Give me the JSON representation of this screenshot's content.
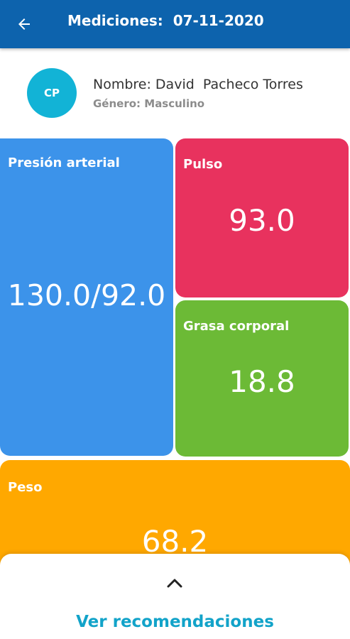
{
  "header": {
    "title": "Mediciones:  07-11-2020",
    "back_icon": "arrow-left-icon"
  },
  "patient": {
    "initials": "CP",
    "name": "Nombre: David  Pacheco Torres",
    "gender": "Género: Masculino"
  },
  "measurements": {
    "blood_pressure": {
      "label": "Presión arterial",
      "value": "130.0/92.0",
      "color": "#3c93ea"
    },
    "pulse": {
      "label": "Pulso",
      "value": "93.0",
      "color": "#e8325e"
    },
    "body_fat": {
      "label": "Grasa corporal",
      "value": "18.8",
      "color": "#6cba36"
    },
    "weight": {
      "label": "Peso",
      "value": "68.2",
      "color": "#ffa800"
    }
  },
  "bottom_sheet": {
    "expand_icon": "chevron-up-icon",
    "action_label": "Ver recomendaciones"
  },
  "colors": {
    "header": "#0d63ad",
    "avatar": "#12b3d6",
    "accent": "#12a3c9"
  }
}
